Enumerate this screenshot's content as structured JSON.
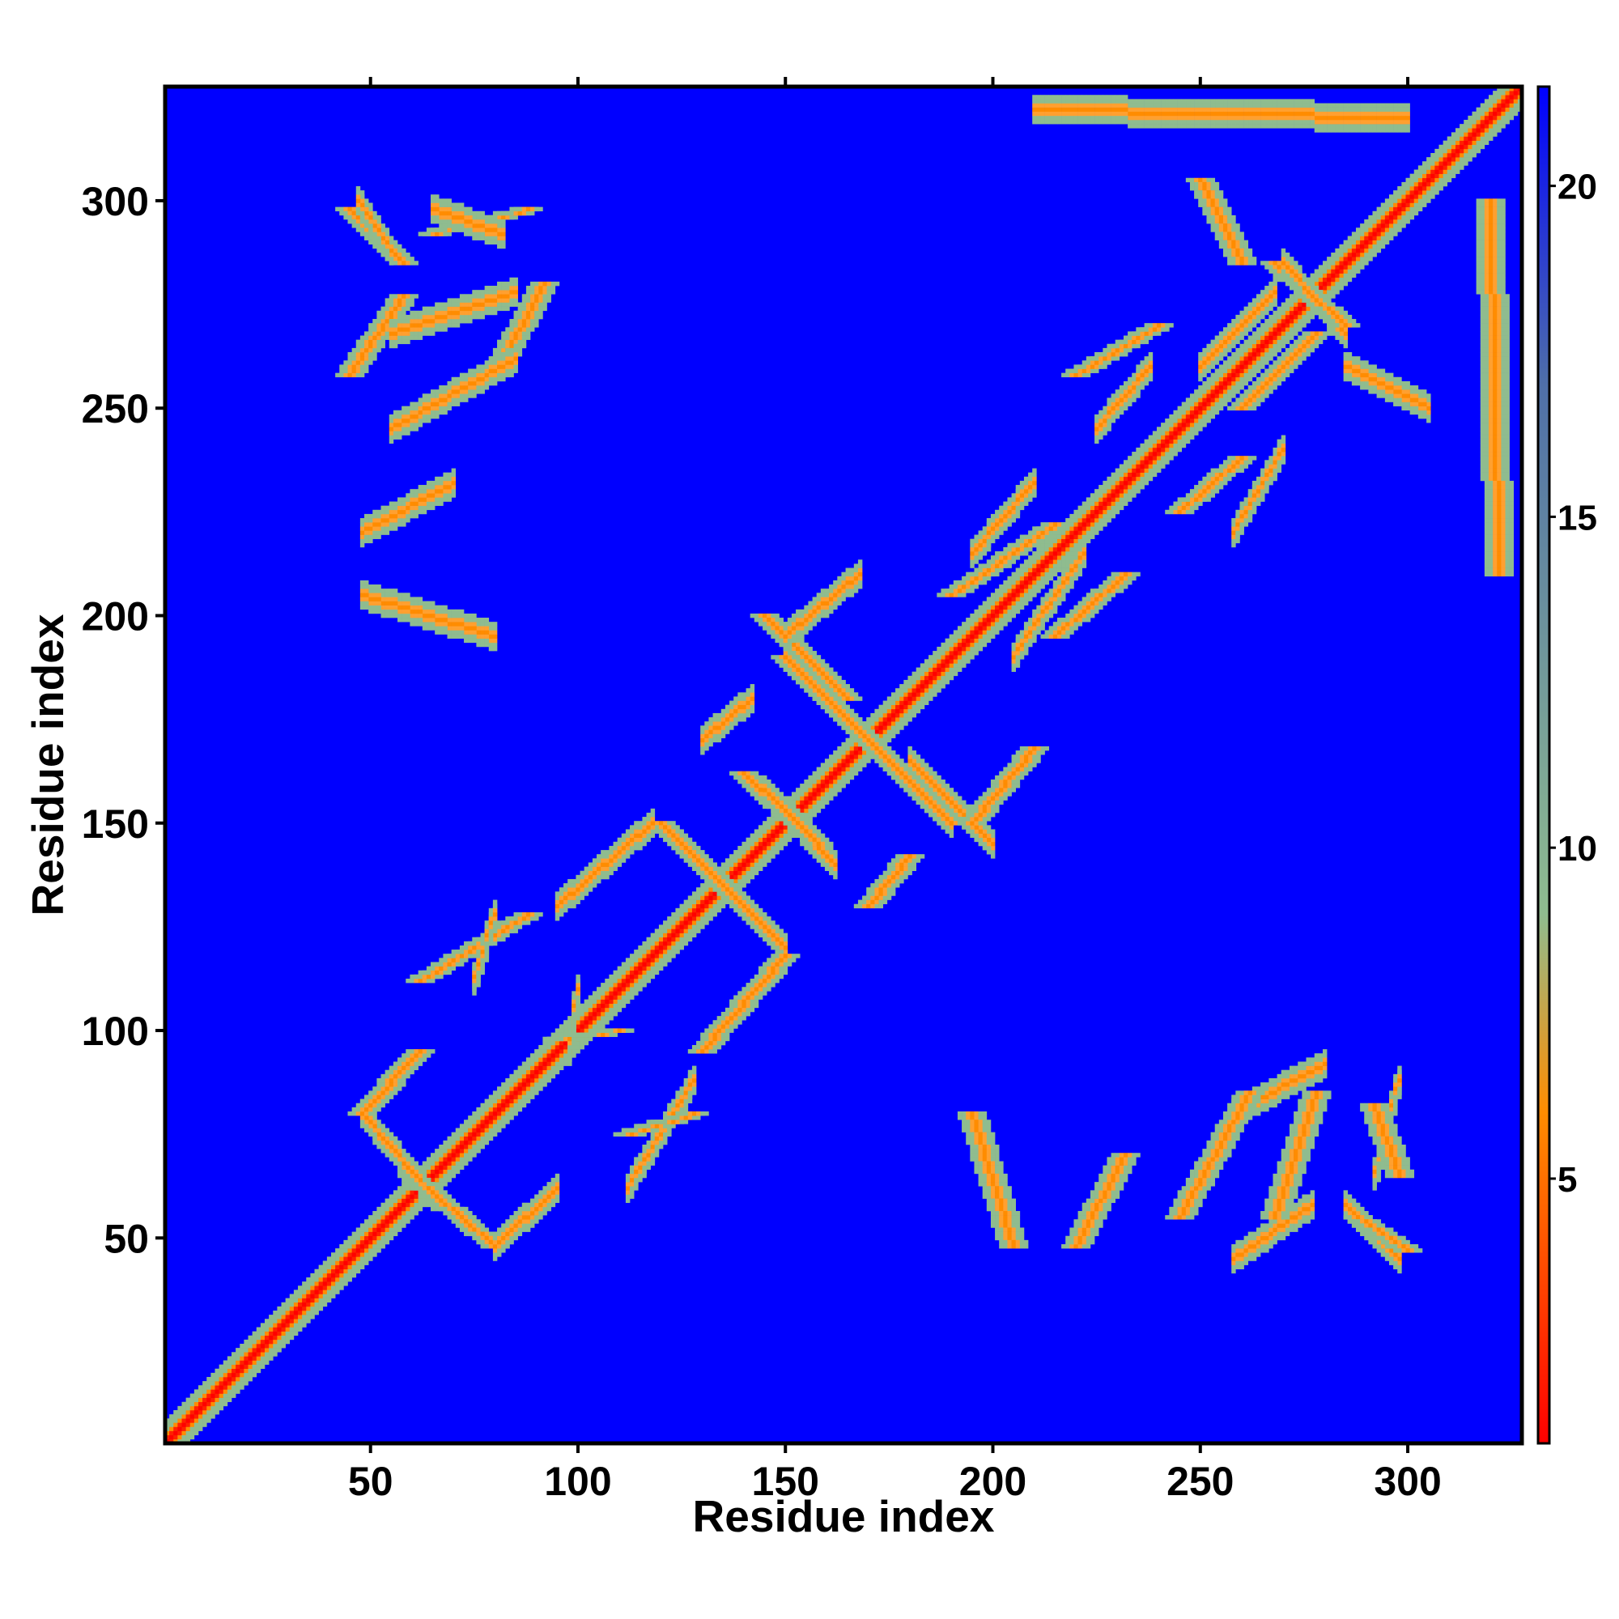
{
  "chart_data": {
    "type": "heatmap",
    "title": "",
    "xlabel": "Residue index",
    "ylabel": "Residue index",
    "xlim": [
      1,
      327
    ],
    "ylim": [
      1,
      327
    ],
    "n_residues": 327,
    "x_ticks": [
      50,
      100,
      150,
      200,
      250,
      300
    ],
    "y_ticks": [
      50,
      100,
      150,
      200,
      250,
      300
    ],
    "colorbar": {
      "range": [
        1,
        21.5
      ],
      "ticks": [
        5,
        10,
        15,
        20
      ],
      "colors": [
        "#ff0000",
        "#ff8c00",
        "#8fbc8f",
        "#4f6fa8",
        "#0000ff"
      ],
      "stops": [
        1,
        6,
        9,
        17,
        21.5
      ]
    },
    "background_color": "#0000ff",
    "contact_segments": [
      {
        "x0": 45,
        "y0": 298,
        "x1": 58,
        "y1": 285
      },
      {
        "x0": 45,
        "y0": 258,
        "x1": 58,
        "y1": 277
      },
      {
        "x0": 80,
        "y0": 258,
        "x1": 92,
        "y1": 280
      },
      {
        "x0": 65,
        "y0": 292,
        "x1": 88,
        "y1": 298
      },
      {
        "x0": 140,
        "y0": 162,
        "x1": 158,
        "y1": 145
      },
      {
        "x0": 145,
        "y0": 200,
        "x1": 165,
        "y1": 180
      },
      {
        "x0": 150,
        "y0": 190,
        "x1": 190,
        "y1": 150
      },
      {
        "x0": 120,
        "y0": 150,
        "x1": 138,
        "y1": 132
      },
      {
        "x0": 130,
        "y0": 95,
        "x1": 150,
        "y1": 118
      },
      {
        "x0": 60,
        "y0": 65,
        "x1": 80,
        "y1": 48
      },
      {
        "x0": 48,
        "y0": 80,
        "x1": 62,
        "y1": 95
      },
      {
        "x0": 62,
        "y0": 112,
        "x1": 88,
        "y1": 128
      },
      {
        "x0": 190,
        "y0": 205,
        "x1": 215,
        "y1": 222
      },
      {
        "x0": 215,
        "y0": 195,
        "x1": 232,
        "y1": 210
      },
      {
        "x0": 220,
        "y0": 258,
        "x1": 240,
        "y1": 270
      },
      {
        "x0": 245,
        "y0": 225,
        "x1": 260,
        "y1": 238
      },
      {
        "x0": 260,
        "y0": 250,
        "x1": 278,
        "y1": 268
      },
      {
        "x0": 268,
        "y0": 285,
        "x1": 285,
        "y1": 270
      },
      {
        "x0": 250,
        "y0": 305,
        "x1": 260,
        "y1": 285
      },
      {
        "x0": 245,
        "y0": 55,
        "x1": 262,
        "y1": 85
      },
      {
        "x0": 268,
        "y0": 55,
        "x1": 278,
        "y1": 85
      },
      {
        "x0": 288,
        "y0": 55,
        "x1": 300,
        "y1": 47
      },
      {
        "x0": 292,
        "y0": 82,
        "x1": 298,
        "y1": 65
      },
      {
        "x0": 220,
        "y0": 48,
        "x1": 232,
        "y1": 70
      },
      {
        "x0": 195,
        "y0": 80,
        "x1": 205,
        "y1": 48
      },
      {
        "x0": 95,
        "y0": 98,
        "x1": 110,
        "y1": 100
      },
      {
        "x0": 112,
        "y0": 75,
        "x1": 128,
        "y1": 80
      },
      {
        "x0": 170,
        "y0": 130,
        "x1": 180,
        "y1": 142
      },
      {
        "x0": 195,
        "y0": 150,
        "x1": 210,
        "y1": 168
      },
      {
        "x0": 320,
        "y0": 300,
        "x1": 322,
        "y1": 210
      }
    ]
  }
}
